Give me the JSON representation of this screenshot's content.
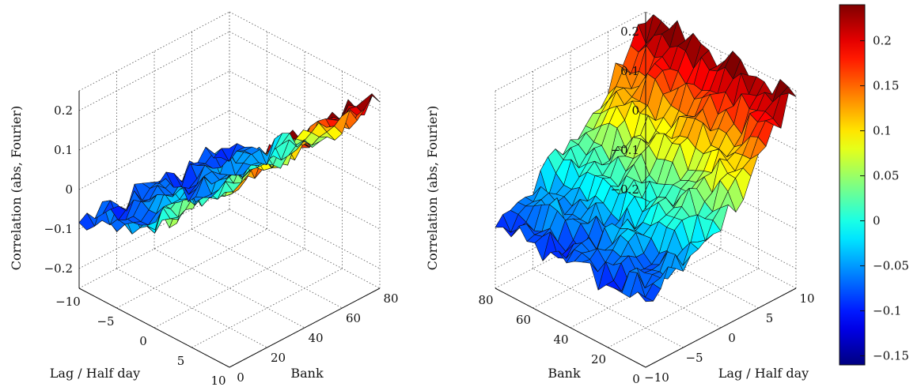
{
  "chart_data": [
    {
      "type": "surface",
      "ylabel": "Lag / Half day",
      "xlabel": "Bank",
      "zlabel": "Correlation (abs, Fourier)",
      "lag_range": [
        -10,
        10
      ],
      "bank_range": [
        0,
        80
      ],
      "zlim": [
        -0.25,
        0.25
      ],
      "lag_ticks": [
        "−10",
        "−5",
        "0",
        "5",
        "10"
      ],
      "bank_ticks": [
        "0",
        "20",
        "40",
        "60",
        "80"
      ],
      "z_ticks": [
        "−0.2",
        "−0.1",
        "0",
        "0.1",
        "0.2"
      ],
      "trend": "correlation increases with lag, from about -0.15 at lag -10 to about 0.22 at lag 10",
      "grid": true
    },
    {
      "type": "surface",
      "ylabel": "Lag / Half day",
      "xlabel": "Bank",
      "zlabel": "Correlation (abs, Fourier)",
      "lag_range": [
        -10,
        10
      ],
      "bank_range": [
        0,
        80
      ],
      "zlim": [
        -0.25,
        0.25
      ],
      "lag_ticks": [
        "−10",
        "−5",
        "0",
        "5",
        "10"
      ],
      "bank_ticks": [
        "0",
        "20",
        "40",
        "60",
        "80"
      ],
      "z_ticks": [
        "−0.2",
        "−0.1",
        "0",
        "0.1",
        "0.2"
      ],
      "trend": "same surface seen from the opposite side; correlation increases with lag",
      "grid": true
    }
  ],
  "colorbar": {
    "range": [
      -0.16,
      0.24
    ],
    "ticks": [
      "0.2",
      "0.15",
      "0.1",
      "0.05",
      "0",
      "−0.05",
      "−0.1",
      "−0.15"
    ],
    "tick_values": [
      0.2,
      0.15,
      0.1,
      0.05,
      0,
      -0.05,
      -0.1,
      -0.15
    ],
    "colormap": "jet"
  }
}
